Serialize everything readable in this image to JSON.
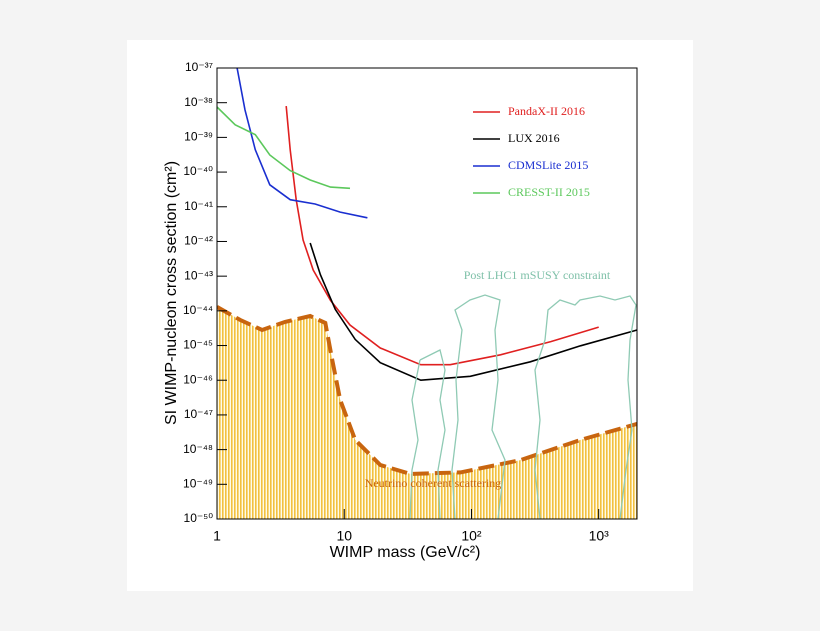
{
  "chart_data": {
    "type": "line",
    "xlabel": "WIMP mass (GeV/c²)",
    "ylabel": "SI WIMP-nucleon cross section (cm²)",
    "xscale": "log",
    "yscale": "log",
    "xlim": [
      1,
      2000
    ],
    "ylim": [
      1e-50,
      1e-37
    ],
    "xticks": [
      1,
      10,
      {
        "value": 100,
        "label": "10²"
      },
      {
        "value": 1000,
        "label": "10³"
      }
    ],
    "yticks": [
      {
        "value": 1e-37,
        "label": "10⁻³⁷"
      },
      {
        "value": 1e-38,
        "label": "10⁻³⁸"
      },
      {
        "value": 1e-39,
        "label": "10⁻³⁹"
      },
      {
        "value": 1e-40,
        "label": "10⁻⁴⁰"
      },
      {
        "value": 1e-41,
        "label": "10⁻⁴¹"
      },
      {
        "value": 1e-42,
        "label": "10⁻⁴²"
      },
      {
        "value": 1e-43,
        "label": "10⁻⁴³"
      },
      {
        "value": 1e-44,
        "label": "10⁻⁴⁴"
      },
      {
        "value": 1e-45,
        "label": "10⁻⁴⁵"
      },
      {
        "value": 1e-46,
        "label": "10⁻⁴⁶"
      },
      {
        "value": 1e-47,
        "label": "10⁻⁴⁷"
      },
      {
        "value": 1e-48,
        "label": "10⁻⁴⁸"
      },
      {
        "value": 1e-49,
        "label": "10⁻⁴⁹"
      },
      {
        "value": 1e-50,
        "label": "10⁻⁵⁰"
      }
    ],
    "series": [
      {
        "name": "PandaX-II 2016",
        "color": "#e02020",
        "x": [
          3.5,
          3.76,
          4.19,
          4.75,
          5.7,
          7.8,
          11.1,
          19.2,
          40,
          68,
          169,
          420,
          1000
        ],
        "values": [
          8e-39,
          4.4e-40,
          1.6e-41,
          1.1e-42,
          1.5e-43,
          2e-44,
          3.9e-45,
          8.5e-46,
          2.8e-46,
          2.8e-46,
          5.4e-46,
          1.3e-45,
          3.4e-45
        ]
      },
      {
        "name": "LUX 2016",
        "color": "#000000",
        "x": [
          5.4,
          6.5,
          8.5,
          12.2,
          19.2,
          40,
          98,
          290,
          720,
          2000
        ],
        "values": [
          9e-43,
          1.1e-43,
          1.1e-44,
          1.5e-45,
          3.2e-46,
          1e-46,
          1.3e-46,
          3.4e-46,
          9.8e-46,
          2.8e-45
        ]
      },
      {
        "name": "CDMSLite 2015",
        "color": "#1a2fd0",
        "x": [
          1.44,
          1.66,
          2,
          2.6,
          3.76,
          5.9,
          9.3,
          15.2
        ],
        "values": [
          1e-37,
          6.2e-39,
          4.4e-40,
          4.3e-41,
          1.6e-41,
          1.2e-41,
          7e-42,
          4.8e-42
        ]
      },
      {
        "name": "CRESST-II 2015",
        "color": "#5cc85c",
        "x": [
          1,
          1.39,
          2,
          2.6,
          3.76,
          5.4,
          7.8,
          11.1
        ],
        "values": [
          7.5e-39,
          2.3e-39,
          1.2e-39,
          3.1e-40,
          1.1e-40,
          5.9e-41,
          3.7e-41,
          3.4e-41
        ]
      }
    ],
    "neutrino_floor": {
      "label": "Neutrino coherent scattering",
      "color": "#c8650f",
      "x": [
        1,
        1.52,
        2.26,
        3.43,
        5.4,
        7.1,
        8.05,
        9.3,
        12.2,
        19.2,
        33,
        82,
        243,
        720,
        2000
      ],
      "values": [
        1.3e-44,
        5.5e-45,
        2.8e-45,
        4.8e-45,
        7.1e-45,
        4.5e-45,
        3.9e-46,
        2.7e-47,
        1.9e-48,
        3.6e-49,
        2e-49,
        2.2e-49,
        5e-49,
        1.9e-48,
        5.5e-48
      ]
    },
    "region_label": {
      "text": "Post LHC1 mSUSY constraint",
      "color": "#7ec0a8"
    }
  }
}
